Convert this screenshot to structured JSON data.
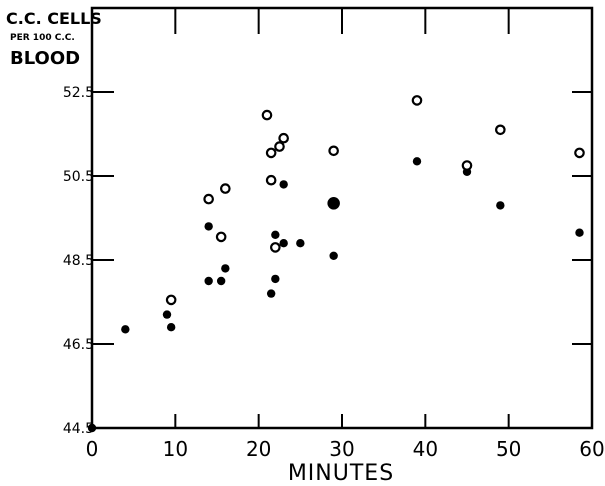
{
  "chart_data": {
    "type": "scatter",
    "title": "",
    "xlabel": "MINUTES",
    "ylabel_lines": [
      "C.C. CELLS",
      "PER 100 C.C.",
      "BLOOD"
    ],
    "xlim": [
      0,
      60
    ],
    "ylim": [
      44.5,
      54.5
    ],
    "x_ticks": [
      0,
      10,
      20,
      30,
      40,
      50,
      60
    ],
    "x_tick_labels": [
      "0",
      "10",
      "20",
      "30",
      "40",
      "50",
      "60"
    ],
    "y_ticks": [
      44.5,
      46.5,
      48.5,
      50.5,
      52.5
    ],
    "y_tick_labels": [
      "44.5",
      "46.5",
      "48.5",
      "50.5",
      "52.5"
    ],
    "grid": false,
    "legend": "none",
    "series": [
      {
        "marker": "filled-circle",
        "color": "#000000",
        "points": [
          [
            0,
            44.5
          ],
          [
            4,
            46.85
          ],
          [
            9,
            47.2
          ],
          [
            9.5,
            46.9
          ],
          [
            14,
            48
          ],
          [
            14,
            49.3
          ],
          [
            15.5,
            48
          ],
          [
            16,
            48.3
          ],
          [
            21.5,
            47.7
          ],
          [
            22,
            48.05
          ],
          [
            22,
            49.1
          ],
          [
            23,
            48.9
          ],
          [
            23,
            50.3
          ],
          [
            25,
            48.9
          ],
          [
            29,
            48.6
          ],
          [
            29,
            49.8
          ],
          [
            39,
            50.85
          ],
          [
            45,
            50.6
          ],
          [
            49,
            49.8
          ],
          [
            58.5,
            49.15
          ]
        ]
      },
      {
        "marker": "open-circle",
        "color": "#000000",
        "points": [
          [
            9.5,
            47.55
          ],
          [
            14,
            49.95
          ],
          [
            15.5,
            49.05
          ],
          [
            16,
            50.2
          ],
          [
            21,
            51.95
          ],
          [
            21.5,
            50.4
          ],
          [
            21.5,
            51.05
          ],
          [
            22,
            48.8
          ],
          [
            22.5,
            51.2
          ],
          [
            23,
            51.4
          ],
          [
            29,
            51.1
          ],
          [
            39,
            52.3
          ],
          [
            45,
            50.75
          ],
          [
            49,
            51.6
          ],
          [
            58.5,
            51.05
          ]
        ]
      }
    ],
    "large_point": {
      "x": 29,
      "y": 49.85,
      "marker": "filled-circle"
    }
  }
}
